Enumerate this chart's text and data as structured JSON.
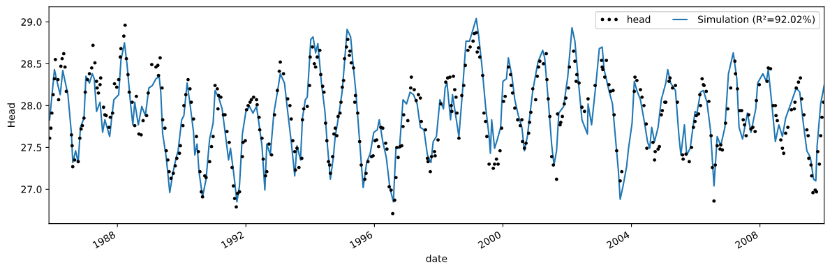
{
  "chart_data": {
    "type": "line",
    "xlabel": "date",
    "ylabel": "Head",
    "xlim": [
      1985.87,
      2010.0
    ],
    "ylim": [
      26.59,
      29.18
    ],
    "xticks": [
      1988,
      1992,
      1996,
      2000,
      2004,
      2008
    ],
    "yticks": [
      {
        "value": 27,
        "label": "27.0"
      },
      {
        "value": 27.5,
        "label": "27.5"
      },
      {
        "value": 28,
        "label": "28.0"
      },
      {
        "value": 28.5,
        "label": "28.5"
      },
      {
        "value": 29,
        "label": "29.0"
      }
    ],
    "grid": false,
    "legend": "top right",
    "series": [
      {
        "name": "head",
        "type": "scatter",
        "marker": "circle",
        "color": "#000000",
        "x": [
          1985.89,
          1985.93,
          1985.96,
          1986.0,
          1986.04,
          1986.07,
          1986.15,
          1986.17,
          1986.24,
          1986.28,
          1986.33,
          1986.37,
          1986.41,
          1986.57,
          1986.59,
          1986.61,
          1986.67,
          1986.78,
          1986.83,
          1986.87,
          1986.91,
          1986.96,
          1987.0,
          1987.07,
          1987.13,
          1987.2,
          1987.24,
          1987.3,
          1987.35,
          1987.37,
          1987.41,
          1987.46,
          1987.48,
          1987.57,
          1987.61,
          1987.65,
          1987.74,
          1987.78,
          1987.85,
          1987.91,
          1987.98,
          1988.04,
          1988.09,
          1988.11,
          1988.2,
          1988.24,
          1988.28,
          1988.33,
          1988.37,
          1988.46,
          1988.54,
          1988.59,
          1988.67,
          1988.74,
          1988.8,
          1988.91,
          1988.96,
          1989.07,
          1989.2,
          1989.26,
          1989.28,
          1989.33,
          1989.39,
          1989.41,
          1989.48,
          1989.52,
          1989.57,
          1989.61,
          1989.67,
          1989.74,
          1989.8,
          1989.85,
          1989.93,
          1989.96,
          1990.04,
          1990.07,
          1990.13,
          1990.2,
          1990.26,
          1990.3,
          1990.37,
          1990.46,
          1990.52,
          1990.57,
          1990.61,
          1990.65,
          1990.72,
          1990.76,
          1990.87,
          1990.93,
          1990.98,
          1991.04,
          1991.11,
          1991.13,
          1991.15,
          1991.22,
          1991.3,
          1991.35,
          1991.41,
          1991.48,
          1991.57,
          1991.61,
          1991.65,
          1991.7,
          1991.74,
          1991.8,
          1991.89,
          1991.91,
          1991.98,
          1992.02,
          1992.07,
          1992.13,
          1992.17,
          1992.24,
          1992.33,
          1992.35,
          1992.41,
          1992.43,
          1992.5,
          1992.54,
          1992.61,
          1992.65,
          1992.72,
          1992.8,
          1992.89,
          1992.98,
          1993.04,
          1993.07,
          1993.17,
          1993.3,
          1993.37,
          1993.41,
          1993.46,
          1993.52,
          1993.54,
          1993.59,
          1993.65,
          1993.74,
          1993.76,
          1993.8,
          1993.91,
          1993.98,
          1994.0,
          1994.07,
          1994.13,
          1994.17,
          1994.22,
          1994.3,
          1994.33,
          1994.39,
          1994.43,
          1994.48,
          1994.52,
          1994.57,
          1994.61,
          1994.63,
          1994.7,
          1994.74,
          1994.78,
          1994.83,
          1994.87,
          1994.93,
          1994.96,
          1995.0,
          1995.04,
          1995.07,
          1995.13,
          1995.17,
          1995.22,
          1995.24,
          1995.28,
          1995.35,
          1995.39,
          1995.41,
          1995.48,
          1995.54,
          1995.59,
          1995.7,
          1995.74,
          1995.8,
          1995.91,
          1995.96,
          1996.02,
          1996.07,
          1996.13,
          1996.2,
          1996.26,
          1996.35,
          1996.39,
          1996.46,
          1996.52,
          1996.57,
          1996.63,
          1996.67,
          1996.7,
          1996.74,
          1996.8,
          1996.85,
          1996.89,
          1996.91,
          1997.04,
          1997.13,
          1997.15,
          1997.24,
          1997.3,
          1997.37,
          1997.43,
          1997.46,
          1997.59,
          1997.65,
          1997.67,
          1997.74,
          1997.78,
          1997.87,
          1997.89,
          1997.98,
          1998.07,
          1998.22,
          1998.28,
          1998.35,
          1998.39,
          1998.41,
          1998.46,
          1998.5,
          1998.54,
          1998.57,
          1998.63,
          1998.72,
          1998.78,
          1998.83,
          1998.91,
          1998.98,
          1999.07,
          1999.11,
          1999.17,
          1999.2,
          1999.24,
          1999.28,
          1999.37,
          1999.41,
          1999.46,
          1999.5,
          1999.57,
          1999.7,
          1999.74,
          1999.8,
          1999.85,
          1999.91,
          1999.96,
          2000.02,
          2000.07,
          2000.17,
          2000.24,
          2000.26,
          2000.3,
          2000.37,
          2000.46,
          2000.54,
          2000.59,
          2000.61,
          2000.67,
          2000.72,
          2000.8,
          2000.83,
          2000.87,
          2000.93,
          2001.02,
          2001.07,
          2001.11,
          2001.15,
          2001.26,
          2001.35,
          2001.37,
          2001.41,
          2001.46,
          2001.52,
          2001.57,
          2001.67,
          2001.7,
          2001.78,
          2001.8,
          2001.85,
          2001.91,
          2001.96,
          2002.04,
          2002.07,
          2002.2,
          2002.24,
          2002.28,
          2002.3,
          2002.37,
          2002.46,
          2002.54,
          2002.65,
          2002.87,
          2003.07,
          2003.09,
          2003.11,
          2003.17,
          2003.22,
          2003.3,
          2003.35,
          2003.43,
          2003.46,
          2003.54,
          2003.65,
          2003.7,
          2004.09,
          2004.11,
          2004.17,
          2004.28,
          2004.33,
          2004.39,
          2004.46,
          2004.48,
          2004.67,
          2004.72,
          2004.74,
          2004.83,
          2004.87,
          2004.93,
          2004.96,
          2005.04,
          2005.07,
          2005.17,
          2005.2,
          2005.28,
          2005.37,
          2005.43,
          2005.59,
          2005.61,
          2005.7,
          2005.8,
          2005.87,
          2005.93,
          2005.98,
          2006.02,
          2006.09,
          2006.13,
          2006.15,
          2006.2,
          2006.24,
          2006.26,
          2006.33,
          2006.41,
          2006.48,
          2006.52,
          2006.57,
          2006.61,
          2006.67,
          2006.76,
          2006.78,
          2006.83,
          2006.93,
          2007.0,
          2007.09,
          2007.22,
          2007.24,
          2007.3,
          2007.37,
          2007.43,
          2007.48,
          2007.52,
          2007.57,
          2007.65,
          2007.72,
          2007.78,
          2007.85,
          2007.89,
          2007.98,
          2008.22,
          2008.26,
          2008.33,
          2008.41,
          2008.48,
          2008.5,
          2008.54,
          2008.65,
          2008.7,
          2008.74,
          2008.8,
          2008.87,
          2008.98,
          2009.07,
          2009.09,
          2009.13,
          2009.2,
          2009.26,
          2009.3,
          2009.37,
          2009.46,
          2009.5,
          2009.52,
          2009.59,
          2009.61,
          2009.65,
          2009.72,
          2009.76,
          2009.8,
          2009.85,
          2009.89,
          2009.93,
          2009.98
        ],
        "values": [
          27.61,
          27.73,
          27.91,
          28.13,
          28.32,
          28.55,
          28.31,
          28.07,
          28.47,
          28.56,
          28.62,
          28.46,
          28.17,
          27.65,
          27.52,
          27.27,
          27.35,
          27.33,
          27.61,
          27.72,
          27.76,
          27.85,
          28.16,
          28.31,
          28.38,
          28.45,
          28.72,
          28.51,
          28.29,
          28.21,
          28.15,
          28.25,
          28.33,
          27.98,
          27.89,
          27.88,
          27.74,
          27.86,
          27.91,
          28.26,
          28.22,
          28.31,
          28.58,
          28.68,
          28.83,
          28.96,
          28.56,
          28.37,
          28.16,
          28.04,
          27.76,
          28.11,
          27.66,
          27.65,
          27.82,
          27.88,
          28.15,
          28.49,
          28.46,
          28.48,
          28.36,
          28.57,
          28.21,
          27.83,
          27.73,
          27.46,
          27.35,
          27.21,
          27.13,
          27.19,
          27.28,
          27.37,
          27.43,
          27.52,
          27.76,
          28.0,
          28.13,
          28.31,
          28.2,
          28.04,
          27.84,
          27.63,
          27.45,
          27.21,
          26.97,
          26.91,
          27.16,
          27.14,
          27.33,
          27.51,
          27.63,
          28.24,
          28.2,
          27.96,
          28.12,
          28.1,
          27.89,
          27.89,
          27.69,
          27.56,
          27.26,
          27.04,
          26.89,
          26.79,
          26.95,
          26.97,
          27.39,
          27.56,
          27.58,
          27.95,
          28.0,
          28.04,
          28.07,
          28.1,
          28.07,
          28.01,
          27.86,
          27.71,
          27.61,
          27.36,
          27.16,
          27.21,
          27.54,
          27.41,
          27.89,
          28.18,
          28.41,
          28.52,
          28.38,
          28.08,
          28.0,
          27.84,
          27.58,
          27.45,
          27.23,
          27.49,
          27.26,
          27.37,
          27.83,
          27.96,
          27.99,
          28.24,
          28.58,
          28.7,
          28.5,
          28.46,
          28.58,
          28.66,
          28.37,
          28.23,
          28.16,
          27.79,
          27.58,
          27.33,
          27.29,
          27.19,
          27.39,
          27.66,
          27.73,
          27.64,
          27.87,
          27.91,
          28.04,
          28.22,
          28.3,
          28.56,
          28.7,
          28.79,
          28.6,
          28.65,
          28.51,
          28.45,
          28.04,
          28.12,
          27.91,
          27.57,
          27.29,
          27.12,
          27.19,
          27.33,
          27.39,
          27.4,
          27.58,
          27.59,
          27.51,
          27.74,
          27.73,
          27.55,
          27.48,
          27.03,
          26.99,
          26.71,
          26.87,
          27.14,
          27.5,
          27.38,
          27.51,
          27.52,
          27.75,
          27.89,
          27.82,
          28.21,
          28.34,
          28.19,
          28.06,
          28.13,
          28.09,
          27.81,
          27.71,
          27.37,
          27.33,
          27.21,
          27.39,
          27.45,
          27.4,
          27.59,
          28.02,
          28.28,
          28.33,
          28.34,
          28.0,
          27.93,
          28.35,
          28.19,
          28.1,
          27.91,
          27.61,
          28.12,
          28.24,
          28.48,
          28.66,
          28.7,
          28.77,
          28.86,
          28.87,
          28.64,
          28.69,
          28.58,
          28.36,
          27.91,
          27.81,
          27.63,
          27.3,
          27.25,
          27.3,
          27.36,
          27.3,
          27.46,
          27.73,
          28.05,
          28.11,
          28.46,
          28.37,
          28.24,
          28.15,
          27.97,
          27.83,
          27.76,
          27.83,
          27.57,
          27.49,
          27.55,
          27.67,
          27.8,
          27.92,
          28.2,
          28.07,
          28.35,
          28.46,
          28.53,
          28.5,
          28.62,
          28.31,
          28.08,
          27.87,
          27.39,
          27.29,
          27.12,
          27.9,
          27.77,
          27.8,
          27.87,
          28.02,
          28.09,
          28.21,
          28.46,
          28.65,
          28.53,
          28.29,
          28.37,
          28.27,
          27.98,
          27.93,
          28.08,
          28.24,
          28.54,
          28.46,
          28.43,
          28.34,
          28.54,
          28.25,
          28.17,
          28.18,
          27.89,
          27.46,
          27.1,
          27.21,
          28.17,
          28.34,
          28.3,
          28.19,
          28.1,
          28.0,
          27.78,
          27.49,
          27.56,
          27.35,
          27.45,
          27.48,
          27.51,
          27.89,
          27.94,
          28.04,
          28.04,
          28.29,
          28.33,
          28.21,
          28.24,
          28.04,
          27.41,
          27.36,
          27.42,
          27.33,
          27.5,
          27.74,
          27.81,
          27.88,
          27.9,
          28.13,
          28.0,
          28.32,
          28.25,
          28.24,
          28.17,
          28.05,
          27.64,
          27.26,
          26.86,
          27.29,
          27.52,
          27.48,
          27.53,
          27.47,
          27.79,
          27.96,
          28.21,
          28.53,
          28.38,
          28.2,
          27.94,
          27.94,
          27.83,
          27.77,
          27.64,
          27.89,
          27.72,
          27.74,
          27.69,
          28.06,
          28.25,
          28.29,
          28.45,
          28.44,
          28.0,
          28.0,
          27.88,
          27.82,
          27.59,
          27.49,
          27.43,
          27.67,
          27.74,
          27.95,
          27.96,
          28.04,
          28.21,
          28.28,
          28.33,
          28.08,
          27.89,
          27.71,
          27.64,
          27.37,
          27.29,
          27.16,
          26.96,
          26.99,
          26.97,
          27.45,
          27.3,
          27.64,
          27.86,
          28.04
        ]
      },
      {
        "name": "Simulation (R²=92.02%)",
        "marker": "none",
        "line_style": "solid",
        "color": "#1f77b4",
        "x": [
          1985.89,
          1986.04,
          1986.15,
          1986.22,
          1986.3,
          1986.37,
          1986.46,
          1986.57,
          1986.61,
          1986.7,
          1986.78,
          1986.85,
          1986.96,
          1987.02,
          1987.13,
          1987.22,
          1987.28,
          1987.35,
          1987.46,
          1987.54,
          1987.61,
          1987.76,
          1987.83,
          1987.89,
          1988.04,
          1988.11,
          1988.22,
          1988.3,
          1988.41,
          1988.48,
          1988.54,
          1988.65,
          1988.76,
          1988.87,
          1988.98,
          1989.09,
          1989.2,
          1989.3,
          1989.35,
          1989.41,
          1989.52,
          1989.63,
          1989.72,
          1989.83,
          1989.89,
          1990.0,
          1990.07,
          1990.17,
          1990.26,
          1990.37,
          1990.41,
          1990.48,
          1990.54,
          1990.65,
          1990.76,
          1990.87,
          1990.98,
          1991.04,
          1991.15,
          1991.26,
          1991.37,
          1991.46,
          1991.52,
          1991.63,
          1991.72,
          1991.8,
          1991.89,
          1992.0,
          1992.11,
          1992.22,
          1992.33,
          1992.39,
          1992.5,
          1992.59,
          1992.65,
          1992.76,
          1992.87,
          1992.98,
          1993.07,
          1993.2,
          1993.3,
          1993.41,
          1993.52,
          1993.59,
          1993.7,
          1993.76,
          1993.85,
          1993.91,
          1994.02,
          1994.09,
          1994.17,
          1994.24,
          1994.35,
          1994.46,
          1994.52,
          1994.63,
          1994.72,
          1994.78,
          1994.89,
          1995.0,
          1995.11,
          1995.15,
          1995.26,
          1995.33,
          1995.43,
          1995.54,
          1995.65,
          1995.76,
          1995.87,
          1995.98,
          1996.09,
          1996.15,
          1996.26,
          1996.37,
          1996.48,
          1996.59,
          1996.67,
          1996.78,
          1996.89,
          1997.0,
          1997.11,
          1997.22,
          1997.33,
          1997.43,
          1997.54,
          1997.65,
          1997.76,
          1997.83,
          1997.93,
          1998.04,
          1998.15,
          1998.2,
          1998.26,
          1998.37,
          1998.43,
          1998.63,
          1998.74,
          1998.85,
          1998.96,
          1999.07,
          1999.17,
          1999.24,
          1999.35,
          1999.46,
          1999.57,
          1999.61,
          1999.65,
          1999.74,
          1999.83,
          1999.93,
          2000.0,
          2000.11,
          2000.17,
          2000.28,
          2000.37,
          2000.48,
          2000.59,
          2000.67,
          2000.76,
          2000.93,
          2001.09,
          2001.24,
          2001.3,
          2001.41,
          2001.52,
          2001.59,
          2001.67,
          2001.74,
          2001.89,
          2002.02,
          2002.15,
          2002.24,
          2002.35,
          2002.46,
          2002.63,
          2002.65,
          2002.76,
          2002.89,
          2003.0,
          2003.09,
          2003.15,
          2003.3,
          2003.41,
          2003.52,
          2003.59,
          2003.65,
          2003.74,
          2003.85,
          2003.91,
          2004.02,
          2004.09,
          2004.17,
          2004.28,
          2004.41,
          2004.5,
          2004.57,
          2004.63,
          2004.72,
          2004.83,
          2004.93,
          2005.07,
          2005.13,
          2005.22,
          2005.37,
          2005.48,
          2005.54,
          2005.65,
          2005.72,
          2005.83,
          2005.98,
          2006.04,
          2006.15,
          2006.24,
          2006.35,
          2006.46,
          2006.57,
          2006.67,
          2006.78,
          2006.91,
          2007.02,
          2007.17,
          2007.28,
          2007.35,
          2007.46,
          2007.61,
          2007.72,
          2007.87,
          2007.93,
          2008.09,
          2008.2,
          2008.26,
          2008.37,
          2008.48,
          2008.59,
          2008.7,
          2008.8,
          2008.96,
          2009.13,
          2009.24,
          2009.35,
          2009.46,
          2009.57,
          2009.67,
          2009.74,
          2009.78,
          2009.89,
          2010.0
        ],
        "values": [
          27.83,
          28.43,
          28.24,
          28.13,
          28.42,
          28.29,
          28.13,
          27.66,
          27.32,
          27.46,
          27.32,
          27.74,
          27.85,
          28.35,
          28.27,
          28.38,
          28.32,
          27.93,
          28.04,
          27.68,
          27.83,
          27.63,
          27.88,
          28.07,
          28.13,
          28.54,
          28.75,
          28.49,
          28.02,
          27.77,
          28.04,
          27.77,
          27.99,
          27.88,
          28.21,
          28.24,
          28.32,
          28.35,
          28.16,
          27.66,
          27.38,
          26.96,
          27.18,
          27.38,
          27.46,
          27.83,
          27.88,
          28.27,
          28.02,
          27.68,
          27.41,
          27.54,
          27.21,
          26.91,
          27.12,
          27.6,
          27.79,
          28.18,
          28.1,
          27.96,
          27.63,
          27.35,
          27.49,
          27.16,
          26.85,
          27.04,
          27.66,
          27.93,
          27.99,
          27.91,
          27.99,
          27.83,
          27.52,
          26.99,
          27.54,
          27.41,
          27.91,
          28.16,
          28.38,
          28.27,
          27.93,
          27.57,
          27.16,
          27.52,
          27.35,
          27.85,
          28.07,
          28.1,
          28.79,
          28.82,
          28.63,
          28.74,
          28.27,
          27.93,
          27.6,
          27.12,
          27.38,
          27.63,
          27.88,
          28.18,
          28.71,
          28.91,
          28.82,
          28.52,
          28.13,
          27.57,
          27.02,
          27.32,
          27.43,
          27.68,
          27.71,
          27.83,
          27.57,
          27.38,
          27.02,
          26.85,
          27.49,
          27.49,
          28.07,
          28.02,
          28.16,
          28.13,
          28.02,
          27.74,
          27.71,
          27.41,
          27.32,
          27.57,
          27.63,
          28.07,
          27.96,
          28.21,
          28.27,
          27.83,
          28.13,
          27.63,
          28.16,
          28.77,
          28.77,
          28.91,
          29.04,
          28.85,
          28.46,
          27.99,
          27.63,
          27.43,
          27.83,
          27.49,
          27.6,
          27.74,
          28.29,
          28.32,
          28.57,
          28.35,
          28.07,
          27.88,
          27.74,
          27.46,
          27.63,
          28.18,
          28.52,
          28.66,
          28.57,
          28.07,
          27.52,
          27.29,
          27.46,
          27.91,
          27.99,
          28.35,
          28.93,
          28.77,
          28.29,
          27.83,
          27.66,
          28.02,
          27.77,
          28.24,
          28.68,
          28.7,
          28.43,
          28.18,
          28.02,
          27.54,
          27.24,
          26.88,
          27.04,
          27.27,
          27.49,
          27.79,
          28.29,
          28.18,
          28.07,
          27.79,
          27.57,
          27.49,
          27.74,
          27.57,
          27.74,
          28.07,
          28.27,
          28.43,
          28.27,
          28.18,
          27.63,
          27.41,
          27.77,
          27.41,
          27.49,
          27.93,
          27.91,
          28.16,
          28.18,
          28.04,
          27.71,
          27.04,
          27.63,
          27.52,
          27.74,
          28.38,
          28.63,
          28.32,
          27.74,
          27.6,
          27.91,
          27.68,
          27.96,
          28.27,
          28.38,
          28.29,
          28.43,
          28.02,
          27.57,
          27.77,
          27.63,
          27.85,
          28.02,
          28.21,
          28.16,
          27.79,
          27.46,
          27.38,
          27.12,
          27.1,
          27.52,
          28.02,
          28.24
        ]
      }
    ]
  }
}
